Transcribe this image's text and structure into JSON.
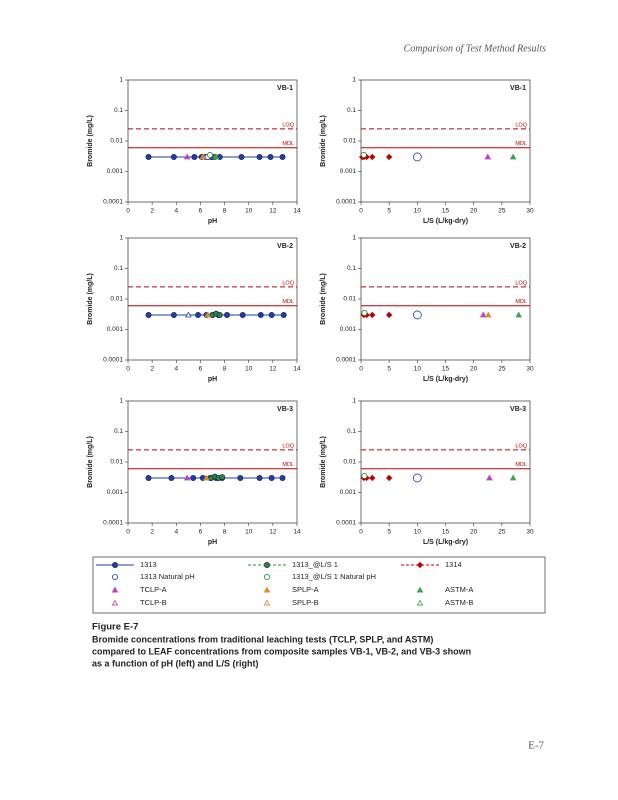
{
  "header": "Comparison of Test Method Results",
  "chart_data": [
    {
      "type": "scatter",
      "panel": "VB-1",
      "xlabel": "pH",
      "ylabel": "Bromide (mg/L)",
      "xlim": [
        0,
        14
      ],
      "xticks": [
        0,
        2,
        4,
        6,
        8,
        10,
        12,
        14
      ],
      "ylim": [
        0.0001,
        1
      ],
      "yticks": [
        0.0001,
        0.001,
        0.01,
        0.1,
        1
      ],
      "log_y": true,
      "ref_lines": [
        {
          "label": "LOQ",
          "value": 0.025,
          "color": "#c00000",
          "dash": true
        },
        {
          "label": "MDL",
          "value": 0.006,
          "color": "#c00000",
          "dash": false
        }
      ],
      "series": [
        {
          "name": "1313",
          "color": "#1f3fa8",
          "marker": "circle",
          "line": true,
          "dash": false,
          "x": [
            1.7,
            3.8,
            5.5,
            6.1,
            6.6,
            7.0,
            7.6,
            9.4,
            10.9,
            11.8,
            12.8
          ],
          "values": [
            0.003,
            0.003,
            0.003,
            0.003,
            0.003,
            0.003,
            0.003,
            0.003,
            0.003,
            0.003,
            0.003
          ]
        },
        {
          "name": "1313_@L/S 1",
          "color": "#2e8b2e",
          "marker": "circle",
          "line": true,
          "dash": true,
          "x": [
            6.4,
            6.9,
            7.2
          ],
          "values": [
            0.003,
            0.003,
            0.003
          ]
        },
        {
          "name": "1314",
          "color": "#c00000",
          "marker": "diamond",
          "line": true,
          "dash": true,
          "x": [
            6.7
          ],
          "values": [
            0.003
          ]
        },
        {
          "name": "1313 Natural pH",
          "color": "#1f3fa8",
          "marker": "open-circle",
          "line": false,
          "dash": false,
          "x": [
            6.6
          ],
          "values": [
            0.003
          ]
        },
        {
          "name": "1313_@L/S 1 Natural pH",
          "color": "#2e8b2e",
          "marker": "open-circle",
          "line": false,
          "dash": false,
          "x": [
            6.8
          ],
          "values": [
            0.0035
          ]
        },
        {
          "name": "TCLP-A",
          "color": "#c040c0",
          "marker": "triangle",
          "line": false,
          "dash": false,
          "x": [
            4.9
          ],
          "values": [
            0.003
          ]
        },
        {
          "name": "SPLP-A",
          "color": "#e08a2a",
          "marker": "triangle",
          "line": false,
          "dash": false,
          "x": [
            6.2
          ],
          "values": [
            0.003
          ]
        },
        {
          "name": "ASTM-A",
          "color": "#3aa64a",
          "marker": "triangle",
          "line": false,
          "dash": false,
          "x": [
            7.3
          ],
          "values": [
            0.003
          ]
        },
        {
          "name": "TCLP-B",
          "color": "#c040c0",
          "marker": "open-triangle",
          "line": false,
          "dash": false,
          "x": [],
          "values": []
        },
        {
          "name": "SPLP-B",
          "color": "#e08a2a",
          "marker": "open-triangle",
          "line": false,
          "dash": false,
          "x": [],
          "values": []
        },
        {
          "name": "ASTM-B",
          "color": "#3aa64a",
          "marker": "open-triangle",
          "line": false,
          "dash": false,
          "x": [],
          "values": []
        }
      ]
    },
    {
      "type": "scatter",
      "panel": "VB-1",
      "xlabel": "L/S (L/kg-dry)",
      "ylabel": "Bromide (mg/L)",
      "xlim": [
        0,
        30
      ],
      "xticks": [
        0,
        5,
        10,
        15,
        20,
        25,
        30
      ],
      "ylim": [
        0.0001,
        1
      ],
      "yticks": [
        0.0001,
        0.001,
        0.01,
        0.1,
        1
      ],
      "log_y": true,
      "ref_lines": [
        {
          "label": "LOQ",
          "value": 0.025,
          "color": "#c00000",
          "dash": true
        },
        {
          "label": "MDL",
          "value": 0.006,
          "color": "#c00000",
          "dash": false
        }
      ],
      "series": [
        {
          "name": "1314",
          "color": "#c00000",
          "marker": "diamond",
          "line": false,
          "dash": false,
          "x": [
            0.2,
            0.5,
            1,
            2,
            5
          ],
          "values": [
            0.003,
            0.003,
            0.003,
            0.003,
            0.003
          ]
        },
        {
          "name": "1313 Natural pH",
          "color": "#1f3fa8",
          "marker": "open-circle",
          "line": false,
          "dash": false,
          "x": [
            10
          ],
          "values": [
            0.003
          ]
        },
        {
          "name": "1313_@L/S 1 Natural pH",
          "color": "#2e8b2e",
          "marker": "open-circle",
          "line": false,
          "dash": false,
          "x": [
            0.5
          ],
          "values": [
            0.0035
          ]
        },
        {
          "name": "TCLP-A",
          "color": "#c040c0",
          "marker": "triangle",
          "line": false,
          "dash": false,
          "x": [
            22.5
          ],
          "values": [
            0.003
          ]
        },
        {
          "name": "ASTM-A",
          "color": "#3aa64a",
          "marker": "triangle",
          "line": false,
          "dash": false,
          "x": [
            27
          ],
          "values": [
            0.003
          ]
        }
      ]
    },
    {
      "type": "scatter",
      "panel": "VB-2",
      "xlabel": "pH",
      "ylabel": "Bromide (mg/L)",
      "xlim": [
        0,
        14
      ],
      "xticks": [
        0,
        2,
        4,
        6,
        8,
        10,
        12,
        14
      ],
      "ylim": [
        0.0001,
        1
      ],
      "yticks": [
        0.0001,
        0.001,
        0.01,
        0.1,
        1
      ],
      "log_y": true,
      "ref_lines": [
        {
          "label": "LOQ",
          "value": 0.025,
          "color": "#c00000",
          "dash": true
        },
        {
          "label": "MDL",
          "value": 0.006,
          "color": "#c00000",
          "dash": false
        }
      ],
      "series": [
        {
          "name": "1313",
          "color": "#1f3fa8",
          "marker": "circle",
          "line": true,
          "dash": false,
          "x": [
            1.7,
            3.8,
            5.8,
            6.5,
            7.0,
            7.5,
            8.2,
            9.5,
            11.0,
            11.9,
            12.9
          ],
          "values": [
            0.003,
            0.003,
            0.003,
            0.003,
            0.003,
            0.003,
            0.003,
            0.003,
            0.003,
            0.003,
            0.003
          ]
        },
        {
          "name": "1313_@L/S 1",
          "color": "#2e8b2e",
          "marker": "circle",
          "line": true,
          "dash": true,
          "x": [
            7.0,
            7.3,
            7.6
          ],
          "values": [
            0.003,
            0.0033,
            0.003
          ]
        },
        {
          "name": "TCLP-B",
          "color": "#1f3fa8",
          "marker": "open-triangle",
          "line": false,
          "dash": false,
          "x": [
            5.0
          ],
          "values": [
            0.003
          ]
        },
        {
          "name": "SPLP-A",
          "color": "#e08a2a",
          "marker": "triangle",
          "line": false,
          "dash": false,
          "x": [
            6.6
          ],
          "values": [
            0.003
          ]
        }
      ]
    },
    {
      "type": "scatter",
      "panel": "VB-2",
      "xlabel": "L/S (L/kg-dry)",
      "ylabel": "Bromide (mg/L)",
      "xlim": [
        0,
        30
      ],
      "xticks": [
        0,
        5,
        10,
        15,
        20,
        25,
        30
      ],
      "ylim": [
        0.0001,
        1
      ],
      "yticks": [
        0.0001,
        0.001,
        0.01,
        0.1,
        1
      ],
      "log_y": true,
      "ref_lines": [
        {
          "label": "LOQ",
          "value": 0.025,
          "color": "#c00000",
          "dash": true
        },
        {
          "label": "MDL",
          "value": 0.006,
          "color": "#c00000",
          "dash": false
        }
      ],
      "series": [
        {
          "name": "1314",
          "color": "#c00000",
          "marker": "diamond",
          "line": false,
          "dash": false,
          "x": [
            0.5,
            1,
            2,
            5
          ],
          "values": [
            0.003,
            0.003,
            0.003,
            0.003
          ]
        },
        {
          "name": "1313 Natural pH",
          "color": "#1f3fa8",
          "marker": "open-circle",
          "line": false,
          "dash": false,
          "x": [
            10
          ],
          "values": [
            0.003
          ]
        },
        {
          "name": "1313_@L/S 1 Natural pH",
          "color": "#2e8b2e",
          "marker": "open-circle",
          "line": false,
          "dash": false,
          "x": [
            0.6
          ],
          "values": [
            0.0035
          ]
        },
        {
          "name": "TCLP-A",
          "color": "#c040c0",
          "marker": "triangle",
          "line": false,
          "dash": false,
          "x": [
            21.7
          ],
          "values": [
            0.003
          ]
        },
        {
          "name": "SPLP-A",
          "color": "#e08a2a",
          "marker": "triangle",
          "line": false,
          "dash": false,
          "x": [
            22.6
          ],
          "values": [
            0.003
          ]
        },
        {
          "name": "ASTM-A",
          "color": "#3aa64a",
          "marker": "triangle",
          "line": false,
          "dash": false,
          "x": [
            28
          ],
          "values": [
            0.003
          ]
        }
      ]
    },
    {
      "type": "scatter",
      "panel": "VB-3",
      "xlabel": "pH",
      "ylabel": "Bromide (mg/L)",
      "xlim": [
        0,
        14
      ],
      "xticks": [
        0,
        2,
        4,
        6,
        8,
        10,
        12,
        14
      ],
      "ylim": [
        0.0001,
        1
      ],
      "yticks": [
        0.0001,
        0.001,
        0.01,
        0.1,
        1
      ],
      "log_y": true,
      "ref_lines": [
        {
          "label": "LOQ",
          "value": 0.025,
          "color": "#c00000",
          "dash": true
        },
        {
          "label": "MDL",
          "value": 0.006,
          "color": "#c00000",
          "dash": false
        }
      ],
      "series": [
        {
          "name": "1313",
          "color": "#1f3fa8",
          "marker": "circle",
          "line": true,
          "dash": false,
          "x": [
            1.7,
            3.6,
            5.4,
            6.2,
            6.8,
            7.3,
            7.8,
            9.3,
            10.9,
            11.9,
            12.8
          ],
          "values": [
            0.003,
            0.003,
            0.003,
            0.003,
            0.003,
            0.003,
            0.003,
            0.003,
            0.003,
            0.003,
            0.003
          ]
        },
        {
          "name": "1313_@L/S 1",
          "color": "#2e8b2e",
          "marker": "circle",
          "line": true,
          "dash": true,
          "x": [
            6.9,
            7.2,
            7.5,
            7.8
          ],
          "values": [
            0.003,
            0.0033,
            0.003,
            0.0032
          ]
        },
        {
          "name": "TCLP-A",
          "color": "#c040c0",
          "marker": "triangle",
          "line": false,
          "dash": false,
          "x": [
            4.9
          ],
          "values": [
            0.003
          ]
        },
        {
          "name": "SPLP-A",
          "color": "#e08a2a",
          "marker": "triangle",
          "line": false,
          "dash": false,
          "x": [
            6.5
          ],
          "values": [
            0.003
          ]
        }
      ]
    },
    {
      "type": "scatter",
      "panel": "VB-3",
      "xlabel": "L/S (L/kg-dry)",
      "ylabel": "Bromide (mg/L)",
      "xlim": [
        0,
        30
      ],
      "xticks": [
        0,
        5,
        10,
        15,
        20,
        25,
        30
      ],
      "ylim": [
        0.0001,
        1
      ],
      "yticks": [
        0.0001,
        0.001,
        0.01,
        0.1,
        1
      ],
      "log_y": true,
      "ref_lines": [
        {
          "label": "LOQ",
          "value": 0.025,
          "color": "#c00000",
          "dash": true
        },
        {
          "label": "MDL",
          "value": 0.006,
          "color": "#c00000",
          "dash": false
        }
      ],
      "series": [
        {
          "name": "1314",
          "color": "#c00000",
          "marker": "diamond",
          "line": false,
          "dash": false,
          "x": [
            0.5,
            1,
            2,
            5
          ],
          "values": [
            0.003,
            0.003,
            0.003,
            0.003
          ]
        },
        {
          "name": "1313 Natural pH",
          "color": "#1f3fa8",
          "marker": "open-circle",
          "line": false,
          "dash": false,
          "x": [
            10
          ],
          "values": [
            0.003
          ]
        },
        {
          "name": "1313_@L/S 1 Natural pH",
          "color": "#2e8b2e",
          "marker": "open-circle",
          "line": false,
          "dash": false,
          "x": [
            0.6
          ],
          "values": [
            0.0035
          ]
        },
        {
          "name": "TCLP-A",
          "color": "#c040c0",
          "marker": "triangle",
          "line": false,
          "dash": false,
          "x": [
            22.8
          ],
          "values": [
            0.003
          ]
        },
        {
          "name": "ASTM-A",
          "color": "#3aa64a",
          "marker": "triangle",
          "line": false,
          "dash": false,
          "x": [
            27
          ],
          "values": [
            0.003
          ]
        }
      ]
    }
  ],
  "caption_title": "Figure E-7",
  "caption_lines": [
    "Bromide concentrations from traditional leaching tests (TCLP, SPLP, and ASTM)",
    "compared to LEAF concentrations from composite samples VB-1, VB-2, and VB-3 shown",
    "as a function of pH (left) and L/S (right)"
  ],
  "page_number": "E-7"
}
